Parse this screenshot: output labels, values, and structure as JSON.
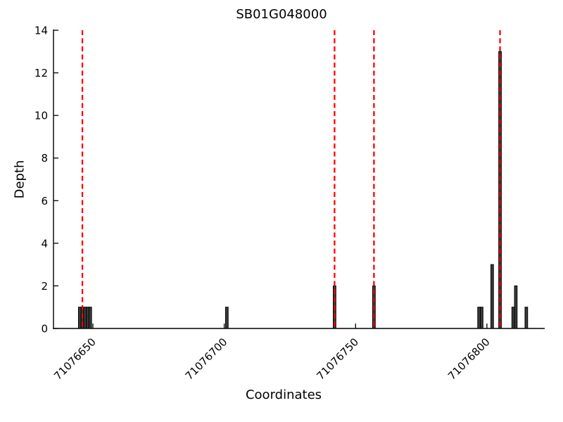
{
  "chart_data": {
    "type": "bar",
    "title": "SB01G048000",
    "xlabel": "Coordinates",
    "ylabel": "Depth",
    "xlim": [
      71076635,
      71076822
    ],
    "ylim": [
      0,
      14
    ],
    "xticks": [
      71076650,
      71076700,
      71076750,
      71076800
    ],
    "yticks": [
      0,
      2,
      4,
      6,
      8,
      10,
      12,
      14
    ],
    "grid": false,
    "legend": null,
    "bars": [
      {
        "pos": 71076645,
        "depth": 1
      },
      {
        "pos": 71076646,
        "depth": 1
      },
      {
        "pos": 71076647,
        "depth": 1
      },
      {
        "pos": 71076648,
        "depth": 1
      },
      {
        "pos": 71076649,
        "depth": 1
      },
      {
        "pos": 71076701,
        "depth": 1
      },
      {
        "pos": 71076742,
        "depth": 2
      },
      {
        "pos": 71076757,
        "depth": 2
      },
      {
        "pos": 71076797,
        "depth": 1
      },
      {
        "pos": 71076798,
        "depth": 1
      },
      {
        "pos": 71076802,
        "depth": 3
      },
      {
        "pos": 71076805,
        "depth": 13
      },
      {
        "pos": 71076810,
        "depth": 1
      },
      {
        "pos": 71076811,
        "depth": 2
      },
      {
        "pos": 71076815,
        "depth": 1
      }
    ],
    "variant_positions": [
      71076646,
      71076742,
      71076757,
      71076805
    ],
    "colors": {
      "bar_fill": "#3b3b3b",
      "bar_edge": "#000000",
      "variant_line": "#ff0000",
      "axis": "#000000",
      "background": "#ffffff"
    }
  }
}
